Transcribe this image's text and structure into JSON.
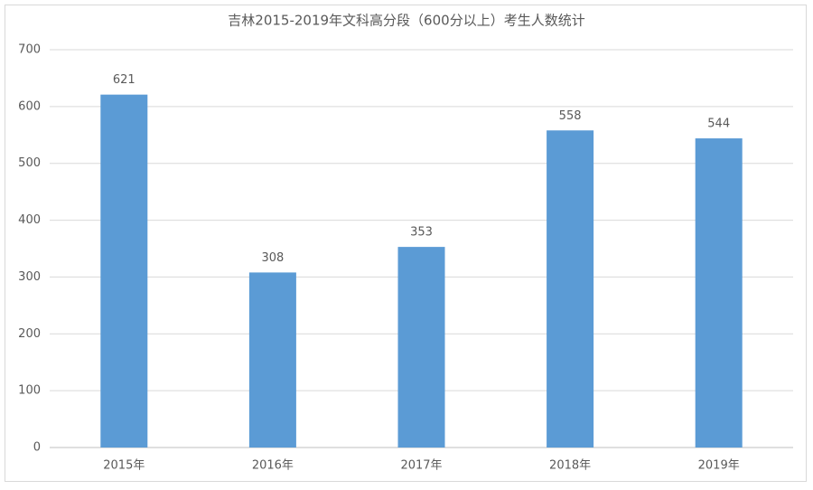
{
  "chart_data": {
    "type": "bar",
    "title": "吉林2015-2019年文科高分段（600分以上）考生人数统计",
    "categories": [
      "2015年",
      "2016年",
      "2017年",
      "2018年",
      "2019年"
    ],
    "values": [
      621,
      308,
      353,
      558,
      544
    ],
    "color": "#5b9bd5",
    "ylim": [
      0,
      700
    ],
    "yticks": [
      0,
      100,
      200,
      300,
      400,
      500,
      600,
      700
    ],
    "grid": true
  }
}
